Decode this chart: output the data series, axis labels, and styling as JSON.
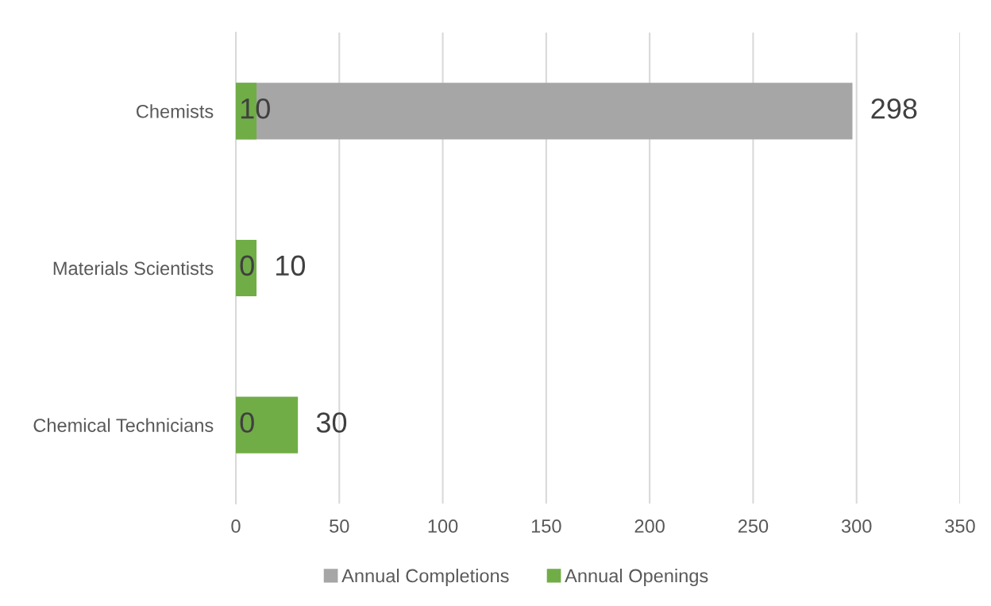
{
  "chart_data": {
    "type": "bar",
    "orientation": "horizontal",
    "categories": [
      "Chemists",
      "Materials Scientists",
      "Chemical Technicians"
    ],
    "series": [
      {
        "name": "Annual Completions",
        "color": "#a6a6a6",
        "values": [
          298,
          0,
          0
        ]
      },
      {
        "name": "Annual Openings",
        "color": "#70ad47",
        "values": [
          10,
          10,
          30
        ]
      }
    ],
    "xlim": [
      0,
      350
    ],
    "xticks": [
      0,
      50,
      100,
      150,
      200,
      250,
      300,
      350
    ],
    "grid": "x",
    "legend": "bottom",
    "data_labels": true
  }
}
